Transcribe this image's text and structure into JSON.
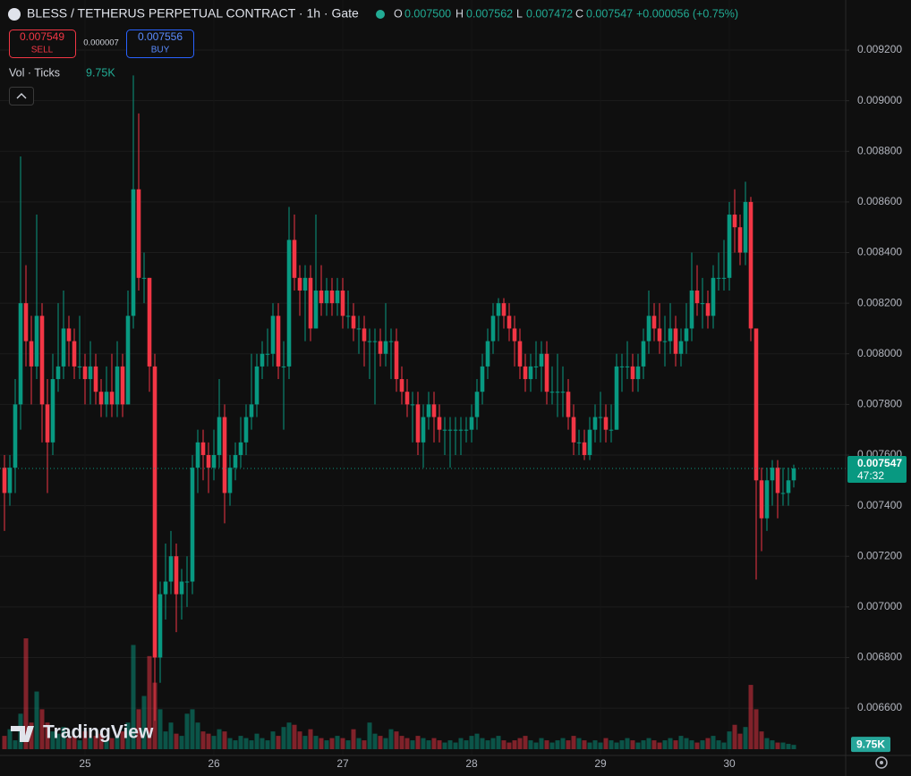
{
  "header": {
    "title": "BLESS / TETHERUS PERPETUAL CONTRACT · 1h · Gate",
    "ohlc": [
      {
        "label": "O",
        "value": "0.007500"
      },
      {
        "label": "H",
        "value": "0.007562"
      },
      {
        "label": "L",
        "value": "0.007472"
      },
      {
        "label": "C",
        "value": "0.007547"
      }
    ],
    "change": "+0.000056 (+0.75%)"
  },
  "trade": {
    "sell_price": "0.007549",
    "sell_label": "SELL",
    "spread": "0.000007",
    "buy_price": "0.007556",
    "buy_label": "BUY"
  },
  "volume_legend": {
    "label": "Vol · Ticks",
    "value": "9.75K"
  },
  "watermark": "TradingView",
  "chart_data": {
    "type": "candlestick",
    "categories": [
      null,
      null,
      null,
      null,
      null,
      null,
      null,
      null,
      null,
      null,
      null,
      null,
      null,
      null,
      null,
      "25",
      null,
      null,
      null,
      null,
      null,
      null,
      null,
      null,
      null,
      null,
      null,
      null,
      null,
      null,
      null,
      null,
      null,
      null,
      null,
      null,
      null,
      null,
      null,
      "26",
      null,
      null,
      null,
      null,
      null,
      null,
      null,
      null,
      null,
      null,
      null,
      null,
      null,
      null,
      null,
      null,
      null,
      null,
      null,
      null,
      null,
      null,
      null,
      "27",
      null,
      null,
      null,
      null,
      null,
      null,
      null,
      null,
      null,
      null,
      null,
      null,
      null,
      null,
      null,
      null,
      null,
      null,
      null,
      null,
      null,
      null,
      null,
      "28",
      null,
      null,
      null,
      null,
      null,
      null,
      null,
      null,
      null,
      null,
      null,
      null,
      null,
      null,
      null,
      null,
      null,
      null,
      null,
      null,
      null,
      null,
      null,
      "29",
      null,
      null,
      null,
      null,
      null,
      null,
      null,
      null,
      null,
      null,
      null,
      null,
      null,
      null,
      null,
      null,
      null,
      null,
      null,
      null,
      null,
      null,
      null,
      "30",
      null,
      null,
      null,
      null,
      null,
      null,
      null,
      null,
      null,
      null,
      null,
      null
    ],
    "open": [
      0.00755,
      0.00745,
      0.00755,
      0.0078,
      0.0082,
      0.00805,
      0.00795,
      0.00815,
      0.0078,
      0.00765,
      0.0079,
      0.00795,
      0.0081,
      0.00805,
      0.00795,
      0.00795,
      0.0079,
      0.00795,
      0.00785,
      0.0078,
      0.00785,
      0.0078,
      0.00795,
      0.0078,
      0.00815,
      0.00865,
      0.0083,
      0.0083,
      0.00795,
      0.0068,
      0.00705,
      0.0071,
      0.0072,
      0.00705,
      0.0071,
      0.0071,
      0.00755,
      0.00765,
      0.0076,
      0.00755,
      0.0076,
      0.00775,
      0.00745,
      0.00755,
      0.0076,
      0.00765,
      0.00775,
      0.0078,
      0.00795,
      0.008,
      0.008,
      0.00815,
      0.00795,
      0.00795,
      0.00845,
      0.0083,
      0.00825,
      0.0083,
      0.0081,
      0.00825,
      0.0082,
      0.00825,
      0.0082,
      0.00825,
      0.00815,
      0.00815,
      0.0081,
      0.0081,
      0.00805,
      0.00805,
      0.00805,
      0.008,
      0.00805,
      0.00805,
      0.0079,
      0.00785,
      0.0078,
      0.0078,
      0.00765,
      0.00775,
      0.0078,
      0.00775,
      0.0077,
      0.0077,
      0.0077,
      0.0077,
      0.0077,
      0.0077,
      0.00775,
      0.00785,
      0.00795,
      0.00805,
      0.00815,
      0.0082,
      0.00815,
      0.0081,
      0.00805,
      0.00795,
      0.0079,
      0.00795,
      0.00795,
      0.008,
      0.00785,
      0.00785,
      0.00785,
      0.00785,
      0.00775,
      0.00765,
      0.00765,
      0.0076,
      0.0077,
      0.00775,
      0.00775,
      0.0077,
      0.0077,
      0.00795,
      0.00795,
      0.00795,
      0.0079,
      0.00795,
      0.00805,
      0.00815,
      0.0081,
      0.00805,
      0.00805,
      0.0081,
      0.008,
      0.00805,
      0.0081,
      0.00825,
      0.0082,
      0.0082,
      0.00815,
      0.0083,
      0.0083,
      0.0083,
      0.00855,
      0.0085,
      0.0084,
      0.0086,
      0.0081,
      0.0075,
      0.00735,
      0.0075,
      0.00755,
      0.00745,
      0.00745,
      0.0075
    ],
    "high": [
      0.0076,
      0.0076,
      0.0079,
      0.00878,
      0.00835,
      0.00815,
      0.00855,
      0.0082,
      0.0079,
      0.008,
      0.0082,
      0.00825,
      0.00815,
      0.0081,
      0.00815,
      0.008,
      0.00805,
      0.008,
      0.0079,
      0.00795,
      0.008,
      0.00805,
      0.008,
      0.00825,
      0.0091,
      0.00895,
      0.0084,
      0.0083,
      0.008,
      0.0071,
      0.00725,
      0.0073,
      0.00725,
      0.00715,
      0.0072,
      0.0076,
      0.0077,
      0.0077,
      0.00765,
      0.0077,
      0.0079,
      0.0078,
      0.0076,
      0.00765,
      0.00775,
      0.0078,
      0.008,
      0.008,
      0.00805,
      0.0081,
      0.0082,
      0.0082,
      0.00805,
      0.00858,
      0.00855,
      0.00835,
      0.00835,
      0.00835,
      0.00855,
      0.00835,
      0.0083,
      0.0083,
      0.0083,
      0.0083,
      0.00825,
      0.0082,
      0.00815,
      0.00815,
      0.0081,
      0.0081,
      0.0081,
      0.0082,
      0.0081,
      0.0081,
      0.00795,
      0.0079,
      0.00785,
      0.00785,
      0.0078,
      0.00785,
      0.00785,
      0.0078,
      0.00775,
      0.00775,
      0.00775,
      0.00775,
      0.00775,
      0.0078,
      0.0079,
      0.008,
      0.0081,
      0.0082,
      0.00822,
      0.00822,
      0.0082,
      0.00815,
      0.0081,
      0.008,
      0.008,
      0.00805,
      0.00805,
      0.00805,
      0.00795,
      0.008,
      0.00795,
      0.0079,
      0.0078,
      0.0077,
      0.0077,
      0.00775,
      0.0078,
      0.00785,
      0.0078,
      0.0078,
      0.008,
      0.008,
      0.00805,
      0.008,
      0.008,
      0.0081,
      0.00825,
      0.0082,
      0.0082,
      0.00815,
      0.0082,
      0.00815,
      0.0081,
      0.0082,
      0.0084,
      0.00835,
      0.0083,
      0.00825,
      0.00835,
      0.0084,
      0.00845,
      0.0086,
      0.00865,
      0.00855,
      0.00868,
      0.00862,
      0.0081,
      0.00755,
      0.00755,
      0.00758,
      0.00758,
      0.00755,
      0.00755,
      0.007562
    ],
    "low": [
      0.0073,
      0.0074,
      0.00745,
      0.0077,
      0.00795,
      0.0078,
      0.0079,
      0.00765,
      0.00745,
      0.0076,
      0.00785,
      0.0079,
      0.00795,
      0.0079,
      0.0079,
      0.0078,
      0.0078,
      0.0078,
      0.00775,
      0.00775,
      0.00775,
      0.00775,
      0.00775,
      0.0078,
      0.0081,
      0.00825,
      0.0082,
      0.00785,
      0.00655,
      0.0067,
      0.00695,
      0.00705,
      0.0069,
      0.00695,
      0.007,
      0.00705,
      0.00745,
      0.0075,
      0.00745,
      0.0075,
      0.00755,
      0.00733,
      0.0074,
      0.0075,
      0.00755,
      0.0076,
      0.0077,
      0.00775,
      0.0079,
      0.00795,
      0.00795,
      0.0079,
      0.0077,
      0.0079,
      0.00825,
      0.00815,
      0.00805,
      0.00805,
      0.0081,
      0.00815,
      0.00815,
      0.00815,
      0.00815,
      0.0081,
      0.0081,
      0.00805,
      0.008,
      0.00795,
      0.0079,
      0.0078,
      0.00795,
      0.00795,
      0.0079,
      0.00785,
      0.0078,
      0.00775,
      0.00765,
      0.0076,
      0.00755,
      0.0077,
      0.00765,
      0.00765,
      0.0076,
      0.00755,
      0.0076,
      0.0076,
      0.00765,
      0.00765,
      0.0077,
      0.0078,
      0.0079,
      0.008,
      0.00805,
      0.0081,
      0.00805,
      0.00795,
      0.0079,
      0.00785,
      0.00785,
      0.0079,
      0.00785,
      0.0078,
      0.0078,
      0.00775,
      0.00775,
      0.0077,
      0.0076,
      0.0076,
      0.00758,
      0.00758,
      0.00765,
      0.00765,
      0.00765,
      0.00765,
      0.0077,
      0.00785,
      0.0079,
      0.00785,
      0.00785,
      0.0079,
      0.008,
      0.00805,
      0.008,
      0.00795,
      0.008,
      0.00795,
      0.00795,
      0.008,
      0.00805,
      0.00815,
      0.0081,
      0.0081,
      0.0081,
      0.00825,
      0.00825,
      0.00825,
      0.0084,
      0.00835,
      0.00835,
      0.00805,
      0.007108,
      0.00722,
      0.0073,
      0.0074,
      0.00735,
      0.0074,
      0.0074,
      0.007472
    ],
    "close": [
      0.00745,
      0.00755,
      0.0078,
      0.0082,
      0.00805,
      0.00795,
      0.00815,
      0.0078,
      0.00765,
      0.0079,
      0.00795,
      0.0081,
      0.00805,
      0.00795,
      0.00795,
      0.0079,
      0.00795,
      0.00785,
      0.0078,
      0.00785,
      0.0078,
      0.00795,
      0.0078,
      0.00815,
      0.00865,
      0.0083,
      0.0083,
      0.00795,
      0.0068,
      0.00705,
      0.0071,
      0.0072,
      0.00705,
      0.0071,
      0.0071,
      0.00755,
      0.00765,
      0.0076,
      0.00755,
      0.0076,
      0.00775,
      0.00745,
      0.00755,
      0.0076,
      0.00765,
      0.00775,
      0.0078,
      0.00795,
      0.008,
      0.008,
      0.00815,
      0.00795,
      0.00795,
      0.00845,
      0.0083,
      0.00825,
      0.0083,
      0.0081,
      0.00825,
      0.0082,
      0.00825,
      0.0082,
      0.00825,
      0.00815,
      0.00815,
      0.0081,
      0.0081,
      0.00805,
      0.00805,
      0.00805,
      0.008,
      0.00805,
      0.00805,
      0.0079,
      0.00785,
      0.0078,
      0.0078,
      0.00765,
      0.00775,
      0.0078,
      0.00775,
      0.0077,
      0.0077,
      0.0077,
      0.0077,
      0.0077,
      0.0077,
      0.00775,
      0.00785,
      0.00795,
      0.00805,
      0.00815,
      0.0082,
      0.00815,
      0.0081,
      0.00805,
      0.00795,
      0.0079,
      0.00795,
      0.00795,
      0.008,
      0.00785,
      0.00785,
      0.00785,
      0.00785,
      0.00775,
      0.00765,
      0.00765,
      0.0076,
      0.0077,
      0.00775,
      0.00775,
      0.0077,
      0.0077,
      0.00795,
      0.00795,
      0.00795,
      0.0079,
      0.00795,
      0.00805,
      0.00815,
      0.0081,
      0.00805,
      0.00805,
      0.0081,
      0.008,
      0.00805,
      0.0081,
      0.00825,
      0.0082,
      0.0082,
      0.00815,
      0.0083,
      0.0083,
      0.0083,
      0.00855,
      0.0085,
      0.0084,
      0.0086,
      0.0081,
      0.0075,
      0.00735,
      0.0075,
      0.00755,
      0.00745,
      0.00745,
      0.0075,
      0.007547
    ],
    "volume": [
      30000,
      45000,
      20000,
      80000,
      250000,
      60000,
      130000,
      90000,
      60000,
      40000,
      35000,
      50000,
      25000,
      30000,
      20000,
      40000,
      25000,
      30000,
      35000,
      20000,
      25000,
      30000,
      40000,
      60000,
      235000,
      90000,
      120000,
      210000,
      150000,
      90000,
      40000,
      60000,
      35000,
      30000,
      80000,
      90000,
      60000,
      40000,
      35000,
      30000,
      45000,
      40000,
      25000,
      20000,
      30000,
      25000,
      20000,
      35000,
      25000,
      20000,
      40000,
      30000,
      50000,
      60000,
      55000,
      40000,
      30000,
      45000,
      30000,
      25000,
      20000,
      25000,
      30000,
      25000,
      20000,
      45000,
      25000,
      20000,
      60000,
      35000,
      30000,
      25000,
      45000,
      40000,
      30000,
      25000,
      20000,
      30000,
      25000,
      20000,
      25000,
      20000,
      15000,
      20000,
      15000,
      25000,
      20000,
      30000,
      35000,
      25000,
      20000,
      25000,
      30000,
      20000,
      15000,
      20000,
      25000,
      30000,
      20000,
      15000,
      25000,
      20000,
      15000,
      20000,
      25000,
      20000,
      30000,
      25000,
      20000,
      15000,
      20000,
      15000,
      25000,
      20000,
      15000,
      20000,
      25000,
      20000,
      15000,
      20000,
      25000,
      20000,
      15000,
      20000,
      25000,
      20000,
      30000,
      25000,
      20000,
      15000,
      20000,
      25000,
      30000,
      20000,
      15000,
      40000,
      55000,
      35000,
      50000,
      145000,
      90000,
      40000,
      25000,
      20000,
      15000,
      15000,
      12000,
      9750
    ],
    "up_color": "#089981",
    "down_color": "#f23645",
    "ylim": [
      0.006413,
      0.009398
    ],
    "yticks": [
      {
        "value": 0.0066,
        "label": "0.006600"
      },
      {
        "value": 0.0068,
        "label": "0.006800"
      },
      {
        "value": 0.007,
        "label": "0.007000"
      },
      {
        "value": 0.0072,
        "label": "0.007200"
      },
      {
        "value": 0.0074,
        "label": "0.007400"
      },
      {
        "value": 0.0076,
        "label": "0.007600"
      },
      {
        "value": 0.0078,
        "label": "0.007800"
      },
      {
        "value": 0.008,
        "label": "0.008000"
      },
      {
        "value": 0.0082,
        "label": "0.008200"
      },
      {
        "value": 0.0084,
        "label": "0.008400"
      },
      {
        "value": 0.0086,
        "label": "0.008600"
      },
      {
        "value": 0.0088,
        "label": "0.008800"
      },
      {
        "value": 0.009,
        "label": "0.009000"
      },
      {
        "value": 0.0092,
        "label": "0.009200"
      }
    ],
    "vlim": [
      0,
      500000
    ],
    "grid": true,
    "last_price": {
      "value": 0.007547,
      "label": "0.007547"
    },
    "countdown": "47:32",
    "volume_label": {
      "value": 9750,
      "label": "9.75K"
    }
  }
}
